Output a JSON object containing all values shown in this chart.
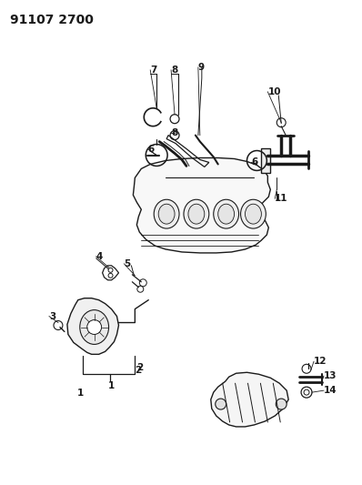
{
  "title_code": "91107 2700",
  "bg_color": "#ffffff",
  "line_color": "#1a1a1a",
  "label_color": "#1a1a1a",
  "title_fontsize": 10,
  "label_fontsize": 7.5,
  "figsize": [
    3.98,
    5.33
  ],
  "dpi": 100
}
